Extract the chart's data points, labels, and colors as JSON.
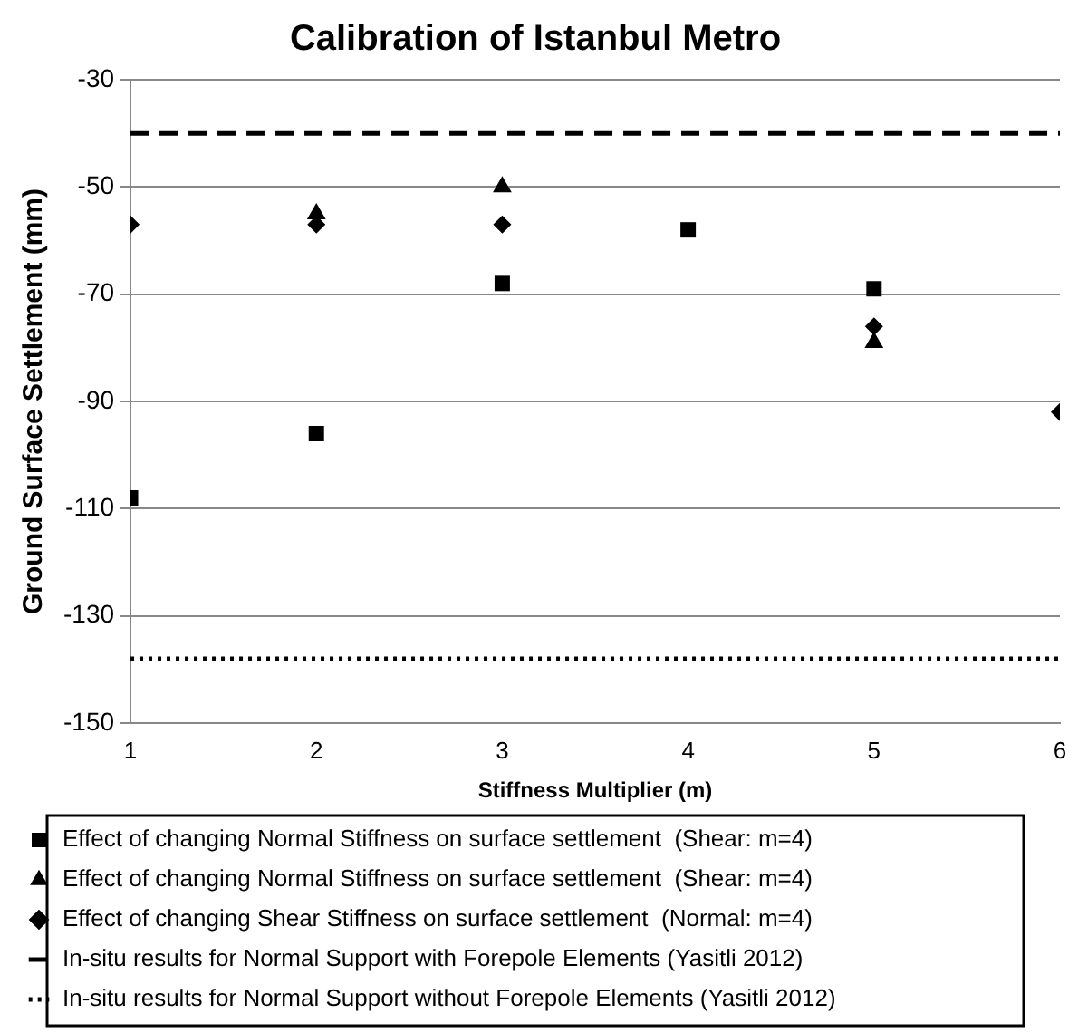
{
  "chart_data": {
    "type": "scatter",
    "title": "Calibration of Istanbul Metro",
    "xlabel": "Stiffness Multiplier (m)",
    "ylabel": "Ground Surface Settlement (mm)",
    "xlim": [
      1,
      6
    ],
    "xticks": [
      1,
      2,
      3,
      4,
      5,
      6
    ],
    "ylim": [
      -150,
      -30
    ],
    "yticks": [
      -150,
      -130,
      -110,
      -90,
      -70,
      -50,
      -30
    ],
    "grid": "y",
    "legend": "bottom",
    "series": [
      {
        "name": "Effect of changing Normal Stiffness on surface settlement  (Shear: m=4)",
        "color": "#000000",
        "marker": "square",
        "x": [
          1,
          2,
          3,
          4,
          5
        ],
        "values": [
          -108,
          -96,
          -68,
          -58,
          -69
        ]
      },
      {
        "name": "Effect of changing Normal Stiffness on surface settlement  (Shear: m=4)",
        "color": "#000000",
        "marker": "triangle",
        "x": [
          2,
          3,
          5
        ],
        "values": [
          -55,
          -50,
          -79
        ]
      },
      {
        "name": "Effect of changing Shear Stiffness on surface settlement  (Normal: m=4)",
        "color": "#000000",
        "marker": "diamond",
        "x": [
          1,
          2,
          3,
          5,
          6
        ],
        "values": [
          -57,
          -57,
          -57,
          -76,
          -92
        ]
      },
      {
        "name": "In-situ results for Normal Support with Forepole Elements (Yasitli 2012)",
        "type": "line",
        "color": "#000000",
        "marker": "none",
        "line_style": "dashed",
        "x": [
          1,
          6
        ],
        "values": [
          -40,
          -40
        ]
      },
      {
        "name": "In-situ results for Normal Support without Forepole Elements (Yasitli 2012)",
        "type": "line",
        "color": "#000000",
        "marker": "none",
        "line_style": "dotted",
        "x": [
          1,
          6
        ],
        "values": [
          -138,
          -138
        ]
      }
    ]
  }
}
